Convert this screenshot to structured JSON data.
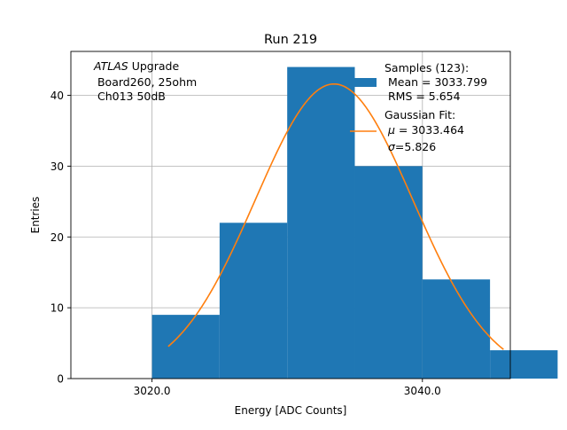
{
  "chart_data": {
    "type": "bar",
    "title": "Run 219",
    "xlabel": "Energy [ADC Counts]",
    "ylabel": "Entries",
    "xlim": [
      3014,
      3046.5
    ],
    "ylim": [
      0,
      46.2
    ],
    "grid": true,
    "x_ticks": [
      {
        "value": 3020,
        "label": "3020.0"
      },
      {
        "value": 3040,
        "label": "3040.0"
      }
    ],
    "y_ticks": [
      {
        "value": 0,
        "label": "0"
      },
      {
        "value": 10,
        "label": "10"
      },
      {
        "value": 20,
        "label": "20"
      },
      {
        "value": 30,
        "label": "30"
      },
      {
        "value": 40,
        "label": "40"
      }
    ],
    "histogram": {
      "bin_edges": [
        3020,
        3025,
        3030,
        3035,
        3040,
        3045,
        3050
      ],
      "counts": [
        9,
        22,
        44,
        30,
        14,
        4
      ],
      "color": "#1f77b4"
    },
    "fit": {
      "amplitude": 41.6,
      "mu": 3033.464,
      "sigma": 5.826,
      "x_range": [
        3021.2,
        3046.0
      ],
      "color": "#ff7f0e"
    },
    "annotation": {
      "italic": "ATLAS",
      "rest": " Upgrade",
      "line2": " Board260, 25ohm",
      "line3": " Ch013 50dB"
    },
    "legend": {
      "placement": "top-right",
      "samples_line1": "Samples (123):",
      "samples_line2": " Mean = 3033.799",
      "samples_line3": " RMS = 5.654",
      "fit_line1": "Gaussian Fit:",
      "fit_mu_symbol": "μ",
      "fit_mu_text": " = 3033.464",
      "fit_sigma_symbol": "σ",
      "fit_sigma_text": "=5.826"
    }
  }
}
